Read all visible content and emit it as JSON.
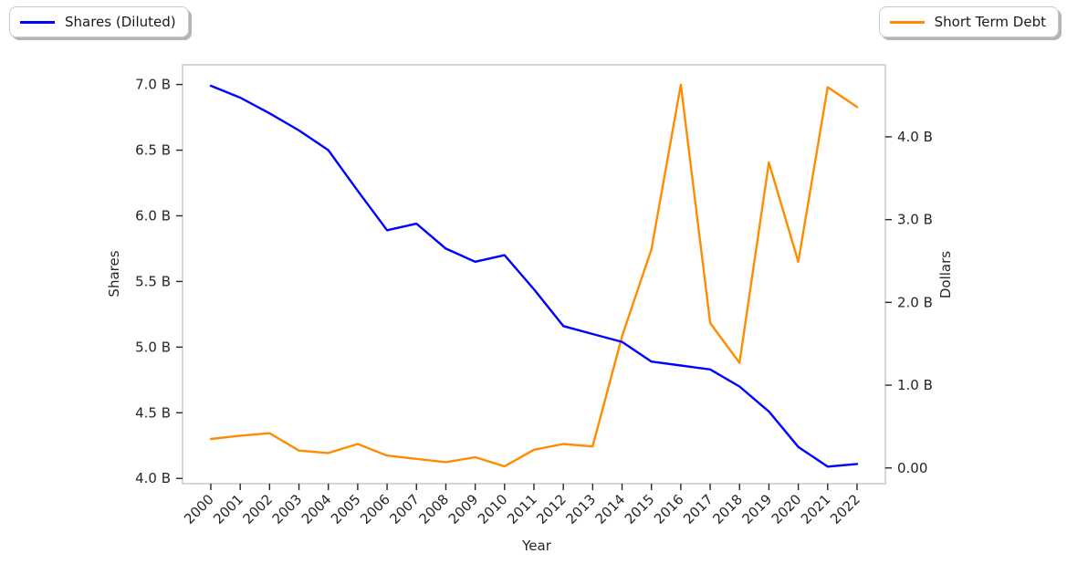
{
  "legend": {
    "shares": {
      "label": "Shares (Diluted)"
    },
    "debt": {
      "label": "Short Term Debt"
    }
  },
  "chart_data": {
    "type": "line",
    "title": "",
    "xlabel": "Year",
    "grid": false,
    "legend_positions": [
      "outside upper-left",
      "outside upper-right"
    ],
    "categories": [
      "2000",
      "2001",
      "2002",
      "2003",
      "2004",
      "2005",
      "2006",
      "2007",
      "2008",
      "2009",
      "2010",
      "2011",
      "2012",
      "2013",
      "2014",
      "2015",
      "2016",
      "2017",
      "2018",
      "2019",
      "2020",
      "2021",
      "2022"
    ],
    "series": [
      {
        "name": "Shares (Diluted)",
        "axis": "left",
        "color": "#0000ff",
        "unit": "B",
        "values": [
          6.99,
          6.9,
          6.78,
          6.65,
          6.5,
          6.19,
          5.89,
          5.94,
          5.75,
          5.65,
          5.7,
          5.44,
          5.16,
          5.1,
          5.04,
          4.89,
          4.86,
          4.83,
          4.7,
          4.51,
          4.24,
          4.09,
          4.11
        ]
      },
      {
        "name": "Short Term Debt",
        "axis": "right",
        "color": "#ff8c00",
        "unit": "B",
        "values": [
          0.35,
          0.39,
          0.42,
          0.21,
          0.18,
          0.29,
          0.15,
          0.11,
          0.07,
          0.13,
          0.02,
          0.22,
          0.29,
          0.26,
          1.59,
          2.64,
          4.63,
          1.75,
          1.27,
          3.69,
          2.49,
          4.6,
          4.36
        ]
      }
    ],
    "left_axis": {
      "label": "Shares",
      "tick_labels": [
        "4.0 B",
        "4.5 B",
        "5.0 B",
        "5.5 B",
        "6.0 B",
        "6.5 B",
        "7.0 B"
      ],
      "tick_values": [
        4.0,
        4.5,
        5.0,
        5.5,
        6.0,
        6.5,
        7.0
      ],
      "range": [
        3.96,
        7.15
      ]
    },
    "right_axis": {
      "label": "Dollars",
      "tick_labels": [
        "0.00",
        "1.0 B",
        "2.0 B",
        "3.0 B",
        "4.0 B"
      ],
      "tick_values": [
        0.0,
        1.0,
        2.0,
        3.0,
        4.0
      ],
      "range": [
        -0.19,
        4.87
      ]
    }
  }
}
